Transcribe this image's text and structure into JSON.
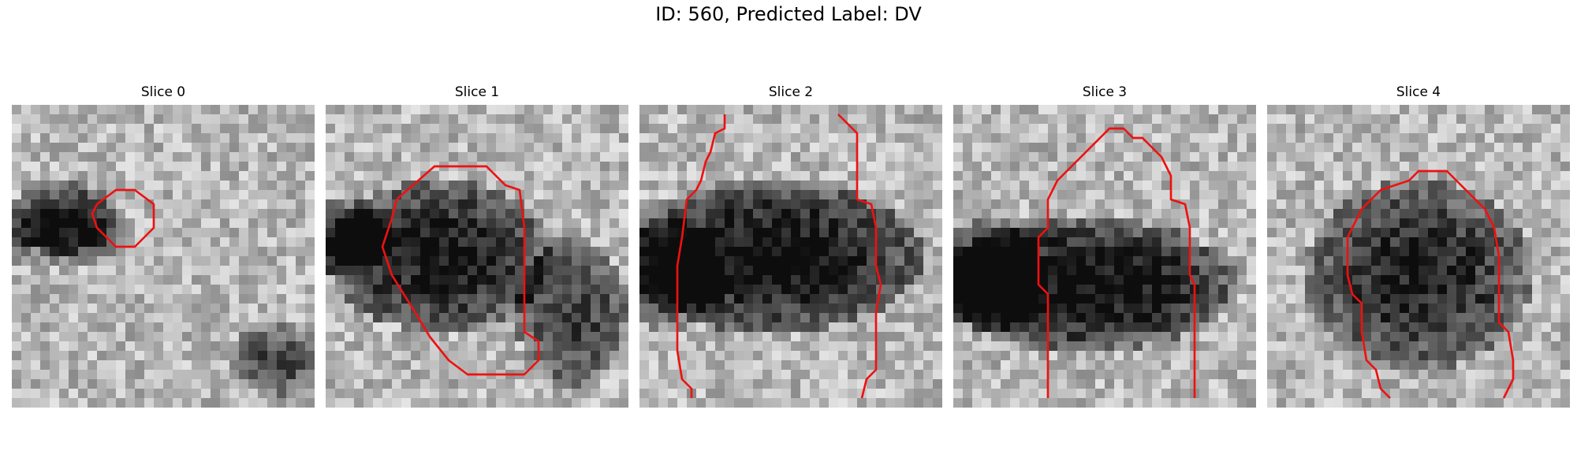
{
  "figure": {
    "title": "ID: 560, Predicted Label: DV"
  },
  "slices": [
    {
      "title": "Slice 0",
      "seed": 17,
      "dark": [
        [
          5.5,
          12,
          6,
          4,
          0.55
        ],
        [
          28,
          27,
          5,
          4,
          0.45
        ],
        [
          3,
          14,
          10,
          3,
          0.25
        ]
      ],
      "contour": [
        [
          9,
          10.5
        ],
        [
          11,
          9
        ],
        [
          13,
          9
        ],
        [
          15,
          10.5
        ],
        [
          15,
          13
        ],
        [
          13,
          15
        ],
        [
          11,
          15
        ],
        [
          9,
          13
        ],
        [
          8.5,
          11.5
        ],
        [
          9,
          10.5
        ]
      ]
    },
    {
      "title": "Slice 1",
      "seed": 42,
      "dark": [
        [
          12,
          16,
          12,
          8,
          0.65
        ],
        [
          2,
          14,
          5,
          4,
          0.5
        ],
        [
          26,
          22,
          6,
          8,
          0.5
        ]
      ],
      "contour": [
        [
          7.5,
          10
        ],
        [
          11.5,
          6.5
        ],
        [
          17,
          6.5
        ],
        [
          19,
          8.5
        ],
        [
          20.5,
          9
        ],
        [
          21,
          13
        ],
        [
          21,
          24
        ],
        [
          22.5,
          25
        ],
        [
          22.5,
          27
        ],
        [
          21,
          28.5
        ],
        [
          15,
          28.5
        ],
        [
          13,
          27
        ],
        [
          11,
          24.5
        ],
        [
          9.5,
          22
        ],
        [
          7,
          18
        ],
        [
          6,
          15
        ],
        [
          7,
          12
        ],
        [
          7.5,
          10
        ]
      ]
    },
    {
      "title": "Slice 2",
      "seed": 88,
      "dark": [
        [
          14,
          16,
          16,
          8,
          0.7
        ],
        [
          3,
          18,
          6,
          6,
          0.4
        ]
      ],
      "contour": [
        [
          9,
          1
        ],
        [
          9,
          2.5
        ],
        [
          8,
          3
        ],
        [
          7.5,
          5
        ],
        [
          7,
          6
        ],
        [
          6.5,
          8
        ],
        [
          6,
          9
        ],
        [
          5,
          10
        ],
        [
          4.5,
          14
        ],
        [
          4,
          17
        ],
        [
          4,
          26
        ],
        [
          4.5,
          29
        ],
        [
          5.5,
          30
        ],
        [
          5.5,
          31
        ]
      ],
      "contour2": [
        [
          21,
          1
        ],
        [
          23,
          3
        ],
        [
          23,
          10
        ],
        [
          24.5,
          10.5
        ],
        [
          25,
          13
        ],
        [
          25,
          17
        ],
        [
          25.5,
          19
        ],
        [
          25,
          22
        ],
        [
          25,
          28
        ],
        [
          24,
          29
        ],
        [
          23.5,
          31
        ]
      ]
    },
    {
      "title": "Slice 3",
      "seed": 7,
      "dark": [
        [
          14,
          19,
          16,
          7,
          0.7
        ],
        [
          4,
          18,
          6,
          6,
          0.5
        ]
      ],
      "contour": [
        [
          10,
          31
        ],
        [
          10,
          20
        ],
        [
          9,
          19
        ],
        [
          9,
          14
        ],
        [
          10,
          13
        ],
        [
          10,
          10
        ],
        [
          11,
          8
        ],
        [
          14,
          5
        ],
        [
          16.5,
          2.5
        ],
        [
          18,
          2.5
        ],
        [
          19,
          3.5
        ],
        [
          20,
          3.5
        ],
        [
          22,
          5.5
        ],
        [
          23,
          7.5
        ],
        [
          23,
          10
        ],
        [
          24.5,
          10.5
        ],
        [
          25,
          13
        ],
        [
          25,
          18
        ],
        [
          25.5,
          19
        ],
        [
          25.5,
          31
        ]
      ]
    },
    {
      "title": "Slice 4",
      "seed": 123,
      "dark": [
        [
          16,
          18,
          12,
          10,
          0.6
        ]
      ],
      "contour": [
        [
          13,
          31
        ],
        [
          12,
          30
        ],
        [
          11.5,
          28
        ],
        [
          10.5,
          27
        ],
        [
          10,
          24
        ],
        [
          10,
          21
        ],
        [
          9,
          20
        ],
        [
          8.5,
          18
        ],
        [
          8.5,
          14
        ],
        [
          9,
          13
        ],
        [
          10,
          11
        ],
        [
          12,
          9
        ],
        [
          15,
          8
        ],
        [
          16,
          7
        ],
        [
          19,
          7
        ],
        [
          21,
          9
        ],
        [
          23,
          11
        ],
        [
          24,
          13
        ],
        [
          24.5,
          16
        ],
        [
          24.5,
          23
        ],
        [
          25.5,
          24
        ],
        [
          26,
          27
        ],
        [
          26,
          29
        ],
        [
          25,
          31
        ]
      ]
    }
  ],
  "contour_color": "#ee1111"
}
